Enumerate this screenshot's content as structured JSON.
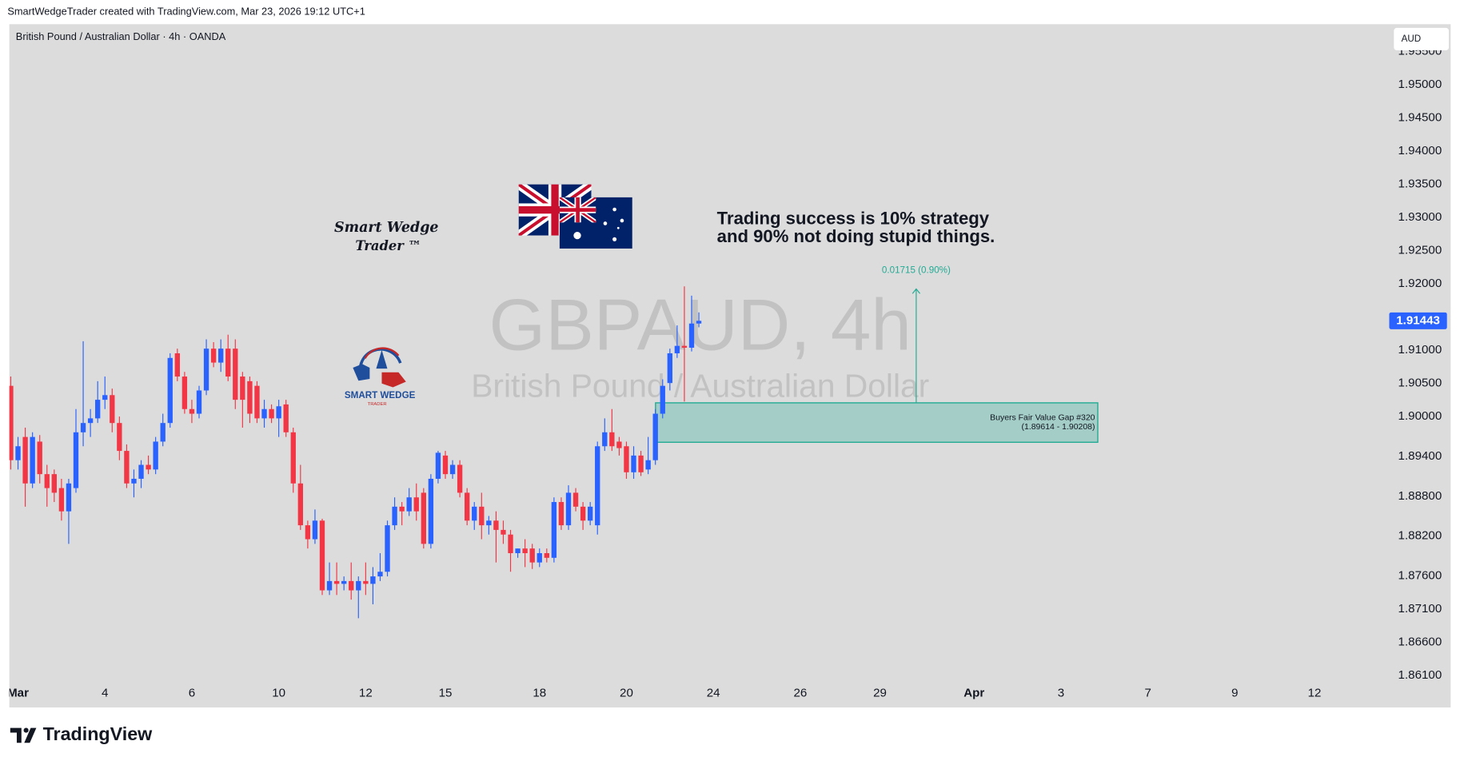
{
  "header": {
    "attribution": "SmartWedgeTrader created with TradingView.com, Mar 23, 2026 19:12 UTC+1",
    "symbol": "British Pound / Australian Dollar · 4h · OANDA",
    "currency": "AUD"
  },
  "chart_data": {
    "type": "candlestick",
    "title": "GBPAUD, 4h",
    "subtitle": "British Pound / Australian Dollar",
    "open": [
      1.90464,
      1.89344,
      1.89694,
      1.88994,
      1.89624,
      1.89134,
      1.89134,
      1.88924,
      1.88574,
      1.88924,
      1.89764,
      1.89904,
      1.89974,
      1.90254,
      1.90324,
      1.89904,
      1.89484,
      1.88994,
      1.89064,
      1.89274,
      1.89204,
      1.89624,
      1.89904,
      1.90954,
      1.90604,
      1.90114,
      1.90044,
      1.90394,
      1.91024,
      1.90814,
      1.91024,
      1.91024,
      1.90604,
      1.90534,
      1.90464,
      1.89974,
      1.90114,
      1.89974,
      1.90184,
      1.89764,
      1.88994,
      1.88364,
      1.88154,
      1.88434,
      1.87384,
      1.87524,
      1.87482,
      1.87524,
      1.87384,
      1.87524,
      1.87482,
      1.87594,
      1.87664,
      1.88364,
      1.88644,
      1.88574,
      1.88784,
      1.88854,
      1.88084,
      1.89064,
      1.89414,
      1.89134,
      1.89274,
      1.88854,
      1.88434,
      1.88644,
      1.88364,
      1.88434,
      1.88294,
      1.88224,
      1.87944,
      1.88014,
      1.88014,
      1.87804,
      1.87944,
      1.87874,
      1.88714,
      1.88364,
      1.88854,
      1.88644,
      1.88434,
      1.88364,
      1.89554,
      1.89764,
      1.89624,
      1.89554,
      1.89162,
      1.89414,
      1.89204,
      1.89344,
      1.90044,
      1.90506,
      1.90954,
      1.91066,
      1.91038,
      1.91402
    ],
    "high": [
      1.90604,
      1.89694,
      1.89834,
      1.89764,
      1.89722,
      1.89274,
      1.89204,
      1.89064,
      1.89064,
      1.90114,
      1.91136,
      1.90114,
      1.90534,
      1.90604,
      1.90422,
      1.90002,
      1.89582,
      1.89204,
      1.89344,
      1.89414,
      1.89694,
      1.90044,
      1.90954,
      1.91024,
      1.90674,
      1.90254,
      1.90464,
      1.91164,
      1.91122,
      1.91164,
      1.91234,
      1.91164,
      1.90674,
      1.90604,
      1.90534,
      1.90254,
      1.90184,
      1.90254,
      1.90254,
      1.89834,
      1.89274,
      1.88434,
      1.88602,
      1.88462,
      1.87804,
      1.87804,
      1.87594,
      1.87804,
      1.87594,
      1.87804,
      1.87734,
      1.87944,
      1.88434,
      1.88784,
      1.88714,
      1.88924,
      1.88994,
      1.88924,
      1.89134,
      1.89484,
      1.89484,
      1.89344,
      1.89344,
      1.88924,
      1.88714,
      1.88854,
      1.88504,
      1.88574,
      1.88434,
      1.88294,
      1.88014,
      1.88154,
      1.88084,
      1.88014,
      1.88014,
      1.88784,
      1.88784,
      1.88966,
      1.88924,
      1.88714,
      1.88714,
      1.89624,
      1.89974,
      1.90114,
      1.89694,
      1.89624,
      1.89554,
      1.89484,
      1.89694,
      1.90114,
      1.90562,
      1.91024,
      1.91374,
      1.91962,
      1.91822,
      1.9157
    ],
    "low": [
      1.89204,
      1.89204,
      1.88644,
      1.88924,
      1.88994,
      1.88644,
      1.88714,
      1.88434,
      1.88084,
      1.88854,
      1.89554,
      1.89694,
      1.89904,
      1.90114,
      1.89764,
      1.89344,
      1.88924,
      1.88784,
      1.88924,
      1.89134,
      1.89134,
      1.89554,
      1.89834,
      1.90534,
      1.90044,
      1.89904,
      1.89974,
      1.90324,
      1.90744,
      1.90674,
      1.90534,
      1.90114,
      1.89834,
      1.89904,
      1.89904,
      1.89834,
      1.89904,
      1.89694,
      1.89694,
      1.88854,
      1.88294,
      1.88014,
      1.88084,
      1.87314,
      1.87314,
      1.87314,
      1.87384,
      1.87244,
      1.86964,
      1.87314,
      1.87174,
      1.87524,
      1.87594,
      1.88294,
      1.88364,
      1.88504,
      1.88434,
      1.88014,
      1.88014,
      1.88994,
      1.89064,
      1.89064,
      1.88784,
      1.88364,
      1.88294,
      1.88154,
      1.88224,
      1.87804,
      1.88084,
      1.87664,
      1.87874,
      1.87734,
      1.87706,
      1.87734,
      1.87804,
      1.87804,
      1.88294,
      1.88294,
      1.88574,
      1.88294,
      1.88364,
      1.88224,
      1.89484,
      1.89484,
      1.89414,
      1.89064,
      1.89064,
      1.89106,
      1.89134,
      1.89274,
      1.89974,
      1.90394,
      1.90884,
      1.90226,
      1.90982,
      1.91346
    ],
    "close": [
      1.89344,
      1.89554,
      1.88994,
      1.89694,
      1.89134,
      1.88924,
      1.88854,
      1.88574,
      1.88994,
      1.89764,
      1.89904,
      1.89974,
      1.90254,
      1.90324,
      1.89904,
      1.89484,
      1.88994,
      1.89064,
      1.89274,
      1.89204,
      1.89624,
      1.89904,
      1.90884,
      1.90604,
      1.90114,
      1.90044,
      1.90394,
      1.91024,
      1.90814,
      1.91024,
      1.90604,
      1.90254,
      1.90254,
      1.90044,
      1.89974,
      1.90114,
      1.89974,
      1.90156,
      1.89764,
      1.88994,
      1.88364,
      1.88154,
      1.88434,
      1.87384,
      1.87524,
      1.87482,
      1.87524,
      1.87384,
      1.87524,
      1.87482,
      1.87594,
      1.87664,
      1.88364,
      1.88644,
      1.88574,
      1.88784,
      1.88574,
      1.88084,
      1.89064,
      1.89456,
      1.89134,
      1.89274,
      1.88854,
      1.88434,
      1.88644,
      1.88364,
      1.88434,
      1.88294,
      1.88224,
      1.87944,
      1.88014,
      1.87944,
      1.87804,
      1.87944,
      1.87874,
      1.88714,
      1.88364,
      1.88854,
      1.88644,
      1.88434,
      1.88644,
      1.89554,
      1.89764,
      1.89554,
      1.89526,
      1.89162,
      1.89414,
      1.89162,
      1.89344,
      1.90044,
      1.90464,
      1.90954,
      1.91066,
      1.91038,
      1.91402,
      1.91443
    ],
    "up_color": "#2962ff",
    "down_color": "#f23645",
    "xlim": [
      -0.2,
      189.8
    ],
    "xticks": [
      {
        "value": 1,
        "label": "Mar"
      },
      {
        "value": 13,
        "label": "4"
      },
      {
        "value": 25,
        "label": "6"
      },
      {
        "value": 37,
        "label": "10"
      },
      {
        "value": 49,
        "label": "12"
      },
      {
        "value": 60,
        "label": "15"
      },
      {
        "value": 73,
        "label": "18"
      },
      {
        "value": 85,
        "label": "20"
      },
      {
        "value": 97,
        "label": "24"
      },
      {
        "value": 109,
        "label": "26"
      },
      {
        "value": 120,
        "label": "29"
      },
      {
        "value": 133,
        "label": "Apr"
      },
      {
        "value": 145,
        "label": "3"
      },
      {
        "value": 157,
        "label": "7"
      },
      {
        "value": 169,
        "label": "9"
      },
      {
        "value": 180,
        "label": "12"
      }
    ],
    "ylim": [
      1.8562,
      1.9591
    ],
    "yticks": [
      {
        "value": 1.955,
        "label": "1.95500"
      },
      {
        "value": 1.95,
        "label": "1.95000"
      },
      {
        "value": 1.945,
        "label": "1.94500"
      },
      {
        "value": 1.94,
        "label": "1.94000"
      },
      {
        "value": 1.935,
        "label": "1.93500"
      },
      {
        "value": 1.93,
        "label": "1.93000"
      },
      {
        "value": 1.925,
        "label": "1.92500"
      },
      {
        "value": 1.92,
        "label": "1.92000"
      },
      {
        "value": 1.91,
        "label": "1.91000"
      },
      {
        "value": 1.905,
        "label": "1.90500"
      },
      {
        "value": 1.9,
        "label": "1.90000"
      },
      {
        "value": 1.894,
        "label": "1.89400"
      },
      {
        "value": 1.888,
        "label": "1.88800"
      },
      {
        "value": 1.882,
        "label": "1.88200"
      },
      {
        "value": 1.876,
        "label": "1.87600"
      },
      {
        "value": 1.871,
        "label": "1.87100"
      },
      {
        "value": 1.866,
        "label": "1.86600"
      },
      {
        "value": 1.861,
        "label": "1.86100"
      }
    ],
    "zone": {
      "label": "Buyers Fair Value Gap #320",
      "range_label": "(1.89614 - 1.90208)",
      "low": 1.89614,
      "high": 1.90208,
      "color": "#22ab94"
    },
    "measure": {
      "label": "0.01715 (0.90%)",
      "value": 0.01715,
      "color": "#22ab94"
    }
  },
  "overlays": {
    "quote": [
      "Trading success is 10% strategy",
      "and 90% not doing stupid things."
    ],
    "logo_script": [
      "Smart Wedge",
      "Trader ™"
    ],
    "logo_badge": [
      "SMART WEDGE",
      "TRADER"
    ]
  },
  "footer": {
    "brand": "TradingView"
  }
}
